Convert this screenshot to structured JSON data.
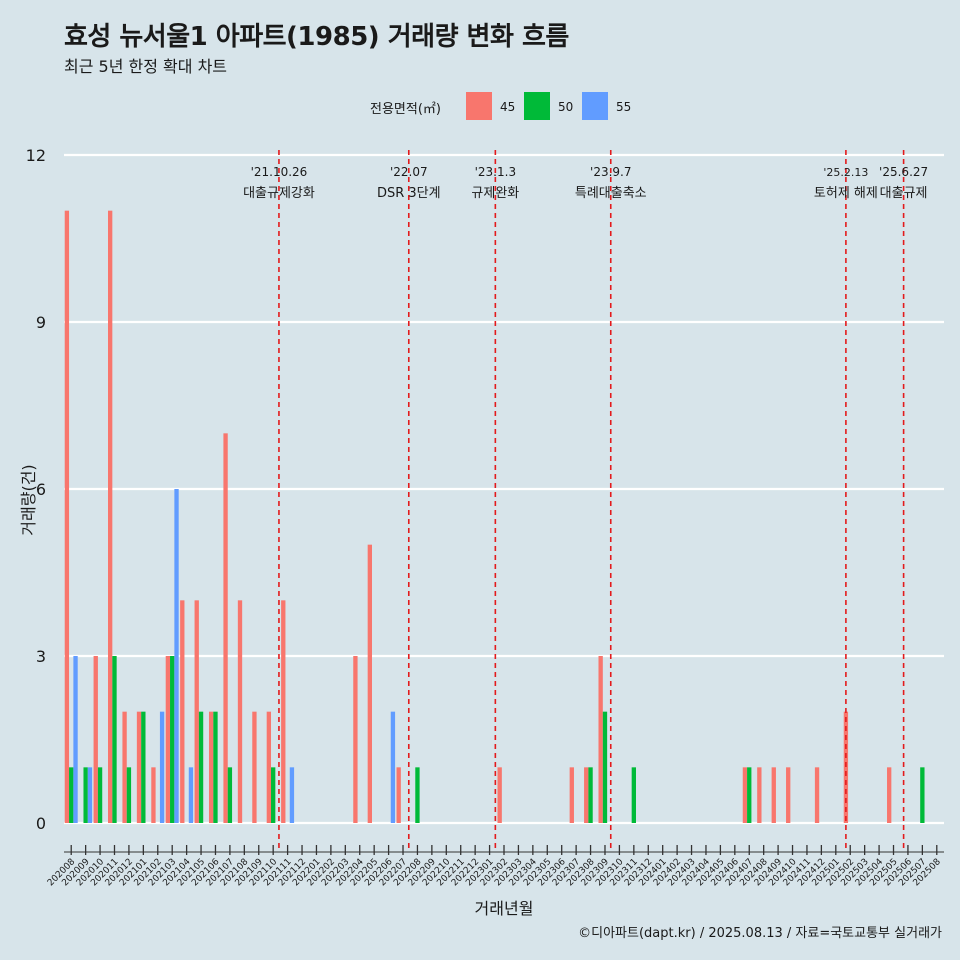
{
  "title": "효성 뉴서울1 아파트(1985) 거래량 변화 흐름",
  "subtitle": "최근 5년 한정 확대 차트",
  "caption": "©디아파트(dapt.kr) / 2025.08.13 / 자료=국토교통부 실거래가",
  "legend": {
    "title": "전용면적(㎡)",
    "items": [
      {
        "label": "45",
        "color": "#F8766D"
      },
      {
        "label": "50",
        "color": "#00BA38"
      },
      {
        "label": "55",
        "color": "#619CFF"
      }
    ]
  },
  "chart_data": {
    "type": "bar",
    "title": "효성 뉴서울1 아파트(1985) 거래량 변화 흐름",
    "subtitle": "최근 5년 한정 확대 차트",
    "xlabel": "거래년월",
    "ylabel": "거래량(건)",
    "ylim": [
      0,
      12
    ],
    "yticks": [
      0,
      3,
      6,
      9,
      12
    ],
    "grid": true,
    "legend_position": "top",
    "categories": [
      "202008",
      "202009",
      "202010",
      "202011",
      "202012",
      "202101",
      "202102",
      "202103",
      "202104",
      "202105",
      "202106",
      "202107",
      "202108",
      "202109",
      "202110",
      "202111",
      "202112",
      "202201",
      "202202",
      "202203",
      "202204",
      "202205",
      "202206",
      "202207",
      "202208",
      "202209",
      "202210",
      "202211",
      "202212",
      "202301",
      "202302",
      "202303",
      "202304",
      "202305",
      "202306",
      "202307",
      "202308",
      "202309",
      "202310",
      "202311",
      "202312",
      "202401",
      "202402",
      "202403",
      "202404",
      "202405",
      "202406",
      "202407",
      "202408",
      "202409",
      "202410",
      "202411",
      "202412",
      "202501",
      "202502",
      "202503",
      "202504",
      "202505",
      "202506",
      "202507",
      "202508"
    ],
    "series": [
      {
        "name": "45",
        "color": "#F8766D",
        "values": [
          11,
          0,
          3,
          11,
          2,
          2,
          1,
          3,
          4,
          4,
          2,
          7,
          4,
          2,
          2,
          4,
          0,
          0,
          0,
          0,
          3,
          5,
          0,
          1,
          0,
          0,
          0,
          0,
          0,
          0,
          1,
          0,
          0,
          0,
          0,
          1,
          1,
          3,
          0,
          0,
          0,
          0,
          0,
          0,
          0,
          0,
          0,
          1,
          1,
          1,
          1,
          0,
          1,
          0,
          2,
          0,
          0,
          1,
          0,
          0,
          0
        ]
      },
      {
        "name": "50",
        "color": "#00BA38",
        "values": [
          1,
          1,
          1,
          3,
          1,
          2,
          0,
          3,
          0,
          2,
          2,
          1,
          0,
          0,
          1,
          0,
          0,
          0,
          0,
          0,
          0,
          0,
          0,
          0,
          1,
          0,
          0,
          0,
          0,
          0,
          0,
          0,
          0,
          0,
          0,
          0,
          1,
          2,
          0,
          1,
          0,
          0,
          0,
          0,
          0,
          0,
          0,
          1,
          0,
          0,
          0,
          0,
          0,
          0,
          0,
          0,
          0,
          0,
          0,
          1,
          0
        ]
      },
      {
        "name": "55",
        "color": "#619CFF",
        "values": [
          3,
          1,
          0,
          0,
          0,
          0,
          2,
          6,
          1,
          0,
          0,
          0,
          0,
          0,
          0,
          1,
          0,
          0,
          0,
          0,
          0,
          0,
          2,
          0,
          0,
          0,
          0,
          0,
          0,
          0,
          0,
          0,
          0,
          0,
          0,
          0,
          0,
          0,
          0,
          0,
          0,
          0,
          0,
          0,
          0,
          0,
          0,
          0,
          0,
          0,
          0,
          0,
          0,
          0,
          0,
          0,
          0,
          0,
          0,
          0,
          0
        ]
      }
    ],
    "annotations": [
      {
        "date": "'21.10.26",
        "label": "대출규제강화",
        "x": 14.9
      },
      {
        "date": "'22.07",
        "label": "DSR 3단계",
        "x": 23.9
      },
      {
        "date": "'23.1.3",
        "label": "규제완화",
        "x": 29.9
      },
      {
        "date": "'23.9.7",
        "label": "특례대출축소",
        "x": 37.9
      },
      {
        "date": "'25.2.13",
        "label": "토허제 해제",
        "x": 54.2
      },
      {
        "date": "'25.6.27",
        "label": "대출규제",
        "x": 58.2
      }
    ]
  }
}
